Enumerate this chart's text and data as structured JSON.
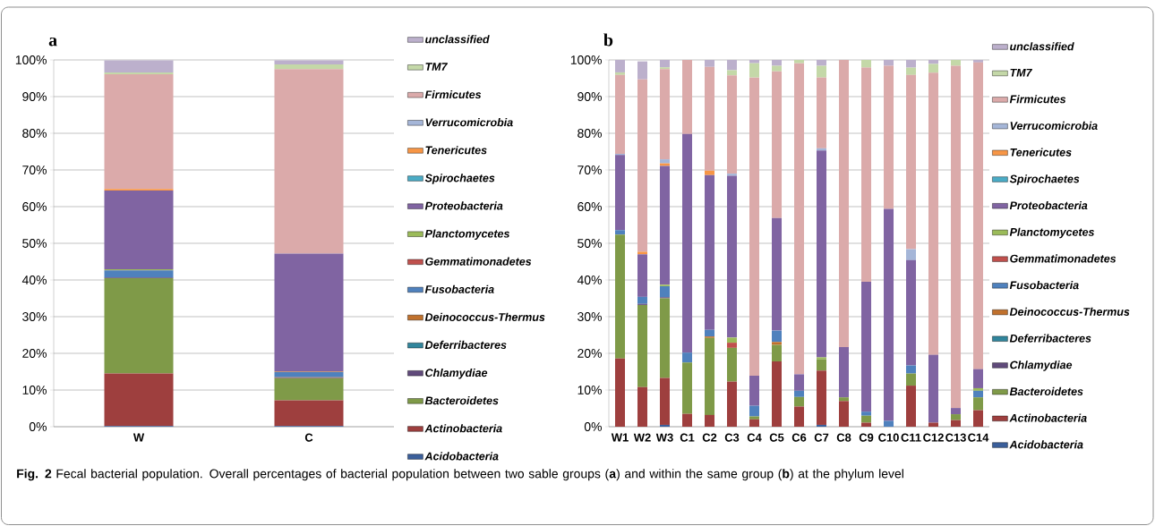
{
  "chart_data": [
    {
      "type": "bar",
      "stacked": true,
      "title": "a",
      "categories": [
        "W",
        "C"
      ],
      "ylim": [
        0,
        100
      ],
      "yticks": [
        {
          "value": 0,
          "label": "0%"
        },
        {
          "value": 10,
          "label": "10%"
        },
        {
          "value": 20,
          "label": "20%"
        },
        {
          "value": 30,
          "label": "30%"
        },
        {
          "value": 40,
          "label": "40%"
        },
        {
          "value": 50,
          "label": "50%"
        },
        {
          "value": 60,
          "label": "60%"
        },
        {
          "value": 70,
          "label": "70%"
        },
        {
          "value": 80,
          "label": "80%"
        },
        {
          "value": 90,
          "label": "90%"
        },
        {
          "value": 100,
          "label": "100%"
        }
      ],
      "grid": "y",
      "legend": "right",
      "annotations": [
        "**Fig. 2** Fecal bacterial population. Overall percentages of bacterial population between two sable groups (**a**) and within the same group (**b**) at the phylum level"
      ],
      "series": [
        {
          "name": "Acidobacteria",
          "color": "#3b5f9b",
          "values": [
            0.2,
            0.2
          ]
        },
        {
          "name": "Actinobacteria",
          "color": "#9e3f3e",
          "values": [
            14.3,
            7.0
          ]
        },
        {
          "name": "Bacteroidetes",
          "color": "#7f9a48",
          "values": [
            26.0,
            6.0
          ]
        },
        {
          "name": "Chlamydiae",
          "color": "#604a7b",
          "values": [
            0.2,
            0.1
          ]
        },
        {
          "name": "Deferribacteres",
          "color": "#31859c",
          "values": [
            0,
            0
          ]
        },
        {
          "name": "Deinococcus-Thermus",
          "color": "#c0712d",
          "values": [
            0,
            0.2
          ]
        },
        {
          "name": "Fusobacteria",
          "color": "#4f81bd",
          "values": [
            1.9,
            1.4
          ]
        },
        {
          "name": "Gemmatimonadetes",
          "color": "#c0504d",
          "values": [
            0.1,
            0.1
          ]
        },
        {
          "name": "Planctomycetes",
          "color": "#9bbb59",
          "values": [
            0.2,
            0.1
          ]
        },
        {
          "name": "Proteobacteria",
          "color": "#8064a2",
          "values": [
            21.5,
            32.1
          ]
        },
        {
          "name": "Spirochaetes",
          "color": "#4bacc6",
          "values": [
            0,
            0
          ]
        },
        {
          "name": "Tenericutes",
          "color": "#f79646",
          "values": [
            0.4,
            null
          ]
        },
        {
          "name": "Verrucomicrobia",
          "color": "#a5b6d8",
          "values": [
            null,
            0
          ]
        },
        {
          "name": "Firmicutes",
          "color": "#dbaaaa",
          "values": [
            31.3,
            50.3
          ]
        },
        {
          "name": "TM7",
          "color": "#c4d8a8",
          "values": [
            0.5,
            1.3
          ]
        },
        {
          "name": "unclassified",
          "color": "#bcb0cc",
          "values": [
            3.3,
            1.1
          ]
        }
      ]
    },
    {
      "type": "bar",
      "stacked": true,
      "title": "b",
      "categories": [
        "W1",
        "W2",
        "W3",
        "C1",
        "C2",
        "C3",
        "C4",
        "C5",
        "C6",
        "C7",
        "C8",
        "C9",
        "C10",
        "C11",
        "C12",
        "C13",
        "C14"
      ],
      "ylim": [
        0,
        100
      ],
      "yticks": [
        {
          "value": 0,
          "label": "0%"
        },
        {
          "value": 10,
          "label": "10%"
        },
        {
          "value": 20,
          "label": "20%"
        },
        {
          "value": 30,
          "label": "30%"
        },
        {
          "value": 40,
          "label": "40%"
        },
        {
          "value": 50,
          "label": "50%"
        },
        {
          "value": 60,
          "label": "60%"
        },
        {
          "value": 70,
          "label": "70%"
        },
        {
          "value": 80,
          "label": "80%"
        },
        {
          "value": 90,
          "label": "90%"
        },
        {
          "value": 100,
          "label": "100%"
        }
      ],
      "grid": "y",
      "legend": "right",
      "series": [
        {
          "name": "Acidobacteria",
          "color": "#3b5f9b",
          "values": [
            0,
            0,
            0.5,
            0,
            0,
            0,
            0,
            0,
            0,
            0.5,
            0,
            0,
            0,
            0,
            0,
            0,
            0
          ]
        },
        {
          "name": "Actinobacteria",
          "color": "#9e3f3e",
          "values": [
            18.6,
            10.8,
            12.8,
            3.5,
            3.2,
            12.3,
            2.0,
            17.8,
            5.5,
            14.8,
            7.0,
            1.1,
            0,
            11.2,
            1.1,
            1.8,
            4.5
          ]
        },
        {
          "name": "Bacteroidetes",
          "color": "#7f9a48",
          "values": [
            33.8,
            22.4,
            21.7,
            14.0,
            21.0,
            9.2,
            0.8,
            4.5,
            2.6,
            3.1,
            1.0,
            1.9,
            0,
            3.3,
            0,
            1.6,
            3.5
          ]
        },
        {
          "name": "Chlamydiae",
          "color": "#604a7b",
          "values": [
            0,
            0.3,
            0.3,
            0,
            0,
            0,
            0,
            0,
            0,
            0,
            0,
            0,
            0,
            0,
            0,
            0,
            0
          ]
        },
        {
          "name": "Deferribacteres",
          "color": "#31859c",
          "values": [
            0,
            0,
            0,
            0,
            0,
            0,
            0,
            0,
            0,
            0,
            0,
            0,
            0,
            0,
            0,
            0,
            0
          ]
        },
        {
          "name": "Deinococcus-Thermus",
          "color": "#c0712d",
          "values": [
            0,
            0,
            0,
            0,
            0.4,
            0,
            0,
            0.8,
            0,
            0,
            0,
            0,
            0,
            0,
            0,
            0,
            0
          ]
        },
        {
          "name": "Fusobacteria",
          "color": "#4f81bd",
          "values": [
            1.2,
            1.9,
            3.0,
            2.7,
            1.8,
            0,
            2.9,
            3.1,
            1.7,
            0,
            0,
            1.1,
            1.6,
            2.2,
            0,
            0,
            1.8
          ]
        },
        {
          "name": "Gemmatimonadetes",
          "color": "#c0504d",
          "values": [
            0,
            0,
            0,
            0,
            0,
            1.4,
            0,
            0,
            0,
            0,
            0,
            0,
            0,
            0,
            0,
            0,
            0
          ]
        },
        {
          "name": "Planctomycetes",
          "color": "#9bbb59",
          "values": [
            0,
            0,
            0.4,
            0,
            0,
            1.4,
            0,
            0,
            0,
            0.5,
            0,
            0,
            0,
            0,
            0,
            0,
            0.7
          ]
        },
        {
          "name": "Proteobacteria",
          "color": "#8064a2",
          "values": [
            20.5,
            11.6,
            32.4,
            59.6,
            42.2,
            44.1,
            8.2,
            30.7,
            4.5,
            56.4,
            13.7,
            35.4,
            57.8,
            28.7,
            18.5,
            1.7,
            5.2
          ]
        },
        {
          "name": "Spirochaetes",
          "color": "#4bacc6",
          "values": [
            0,
            0,
            0,
            0,
            0,
            0,
            0,
            0,
            0,
            0,
            0,
            0,
            0,
            0,
            0,
            0,
            0
          ]
        },
        {
          "name": "Tenericutes",
          "color": "#f79646",
          "values": [
            0,
            0.7,
            0.7,
            0,
            1.2,
            0,
            0,
            0,
            0,
            0,
            0,
            0,
            0,
            0,
            0,
            0,
            0
          ]
        },
        {
          "name": "Verrucomicrobia",
          "color": "#a5b6d8",
          "values": [
            0.3,
            0,
            1.1,
            0,
            0,
            0.6,
            0,
            0,
            0,
            0.6,
            0,
            0,
            0,
            3.0,
            0,
            0,
            0
          ]
        },
        {
          "name": "Firmicutes",
          "color": "#dbaaaa",
          "values": [
            21.5,
            47.0,
            24.6,
            20.2,
            28.3,
            26.8,
            81.3,
            40.0,
            84.8,
            19.3,
            78.3,
            58.4,
            39.0,
            47.5,
            76.9,
            93.3,
            83.6
          ]
        },
        {
          "name": "TM7",
          "color": "#c4d8a8",
          "values": [
            0.7,
            null,
            0.5,
            0,
            0,
            1.4,
            3.9,
            1.5,
            0.9,
            3.2,
            0,
            2.1,
            0,
            2.0,
            2.4,
            1.6,
            0
          ]
        },
        {
          "name": "unclassified",
          "color": "#bcb0cc",
          "values": [
            3.4,
            4.9,
            2.0,
            0,
            1.9,
            2.8,
            0.9,
            1.6,
            0,
            1.6,
            0,
            0,
            1.6,
            2.1,
            1.1,
            0,
            0.7
          ]
        }
      ]
    }
  ]
}
